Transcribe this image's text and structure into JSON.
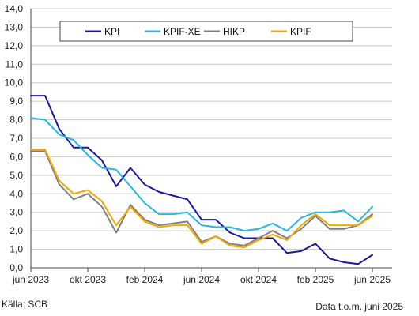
{
  "chart_data": {
    "type": "line",
    "title": "",
    "xlabel": "",
    "ylabel": "",
    "ylim": [
      0,
      14
    ],
    "y_ticks": [
      "0,0",
      "1,0",
      "2,0",
      "3,0",
      "4,0",
      "5,0",
      "6,0",
      "7,0",
      "8,0",
      "9,0",
      "10,0",
      "11,0",
      "12,0",
      "13,0",
      "14,0"
    ],
    "x_ticks": [
      {
        "index": 0,
        "label": "jun 2023"
      },
      {
        "index": 4,
        "label": "okt 2023"
      },
      {
        "index": 8,
        "label": "feb 2024"
      },
      {
        "index": 12,
        "label": "jun 2024"
      },
      {
        "index": 16,
        "label": "okt 2024"
      },
      {
        "index": 20,
        "label": "feb 2025"
      },
      {
        "index": 24,
        "label": "jun 2025"
      }
    ],
    "x": [
      "2023-06",
      "2023-07",
      "2023-08",
      "2023-09",
      "2023-10",
      "2023-11",
      "2023-12",
      "2024-01",
      "2024-02",
      "2024-03",
      "2024-04",
      "2024-05",
      "2024-06",
      "2024-07",
      "2024-08",
      "2024-09",
      "2024-10",
      "2024-11",
      "2024-12",
      "2025-01",
      "2025-02",
      "2025-03",
      "2025-04",
      "2025-05",
      "2025-06"
    ],
    "grid": true,
    "legend_position": "top",
    "series": [
      {
        "name": "KPI",
        "color": "#1a1a9c",
        "values": [
          9.3,
          9.3,
          7.5,
          6.5,
          6.5,
          5.8,
          4.4,
          5.4,
          4.5,
          4.1,
          3.9,
          3.7,
          2.6,
          2.6,
          1.9,
          1.6,
          1.6,
          1.6,
          0.8,
          0.9,
          1.3,
          0.5,
          0.3,
          0.2,
          0.7
        ]
      },
      {
        "name": "KPIF-XE",
        "color": "#29b6e8",
        "values": [
          8.1,
          8.0,
          7.2,
          6.9,
          6.1,
          5.4,
          5.3,
          4.4,
          3.5,
          2.9,
          2.9,
          3.0,
          2.3,
          2.2,
          2.2,
          2.0,
          2.1,
          2.4,
          2.0,
          2.7,
          3.0,
          3.0,
          3.1,
          2.5,
          3.3
        ]
      },
      {
        "name": "HIKP",
        "color": "#808080",
        "values": [
          6.3,
          6.3,
          4.5,
          3.7,
          4.0,
          3.3,
          1.9,
          3.4,
          2.6,
          2.3,
          2.4,
          2.5,
          1.4,
          1.7,
          1.3,
          1.2,
          1.6,
          2.0,
          1.6,
          2.1,
          2.8,
          2.1,
          2.1,
          2.3,
          2.9
        ]
      },
      {
        "name": "KPIF",
        "color": "#f2a900",
        "values": [
          6.4,
          6.4,
          4.7,
          4.0,
          4.2,
          3.6,
          2.3,
          3.3,
          2.5,
          2.2,
          2.3,
          2.3,
          1.3,
          1.7,
          1.2,
          1.1,
          1.5,
          1.8,
          1.5,
          2.3,
          2.9,
          2.3,
          2.3,
          2.3,
          2.8
        ]
      }
    ]
  },
  "footer": {
    "source": "Källa: SCB",
    "data_note": "Data t.o.m. juni 2025"
  }
}
